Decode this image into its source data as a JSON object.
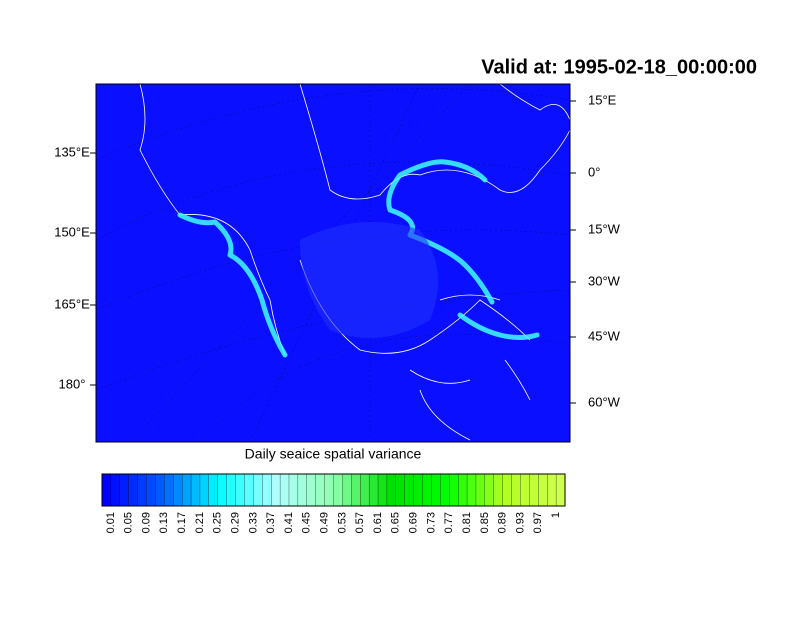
{
  "title": "Valid at: 1995-02-18_00:00:00",
  "map": {
    "left_labels": [
      "135°E",
      "150°E",
      "165°E",
      "180°"
    ],
    "right_labels": [
      "15°E",
      "0°",
      "15°W",
      "30°W",
      "45°W",
      "60°W"
    ]
  },
  "colorbar": {
    "title": "Daily seaice spatial variance",
    "labels": [
      0.01,
      0.05,
      0.09,
      0.13,
      0.17,
      0.21,
      0.25,
      0.29,
      0.33,
      0.37,
      0.41,
      0.45,
      0.49,
      0.53,
      0.57,
      0.61,
      0.65,
      0.69,
      0.73,
      0.77,
      0.81,
      0.85,
      0.89,
      0.93,
      0.97,
      1
    ],
    "colormap": [
      "#0000ff",
      "#0060ff",
      "#00ffff",
      "#b0ffff",
      "#90ffb0",
      "#00e000",
      "#00ff00",
      "#b0ff20",
      "#d0ff50"
    ]
  }
}
